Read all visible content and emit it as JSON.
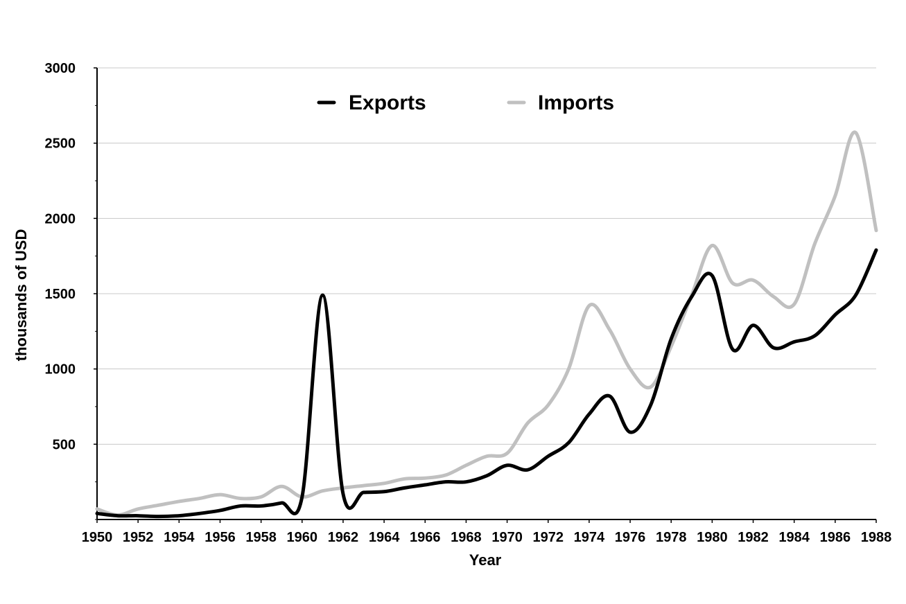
{
  "chart_data": {
    "type": "line",
    "title": "",
    "xlabel": "Year",
    "ylabel": "thousands of USD",
    "xlim": [
      1950,
      1988
    ],
    "ylim": [
      0,
      3000
    ],
    "x_ticks": [
      "1950",
      "1952",
      "1954",
      "1956",
      "1958",
      "1960",
      "1962",
      "1964",
      "1966",
      "1968",
      "1970",
      "1972",
      "1974",
      "1976",
      "1978",
      "1980",
      "1982",
      "1984",
      "1986",
      "1988"
    ],
    "y_ticks": [
      "500",
      "1000",
      "1500",
      "2000",
      "2500",
      "3000"
    ],
    "grid": "horizontal",
    "legend_position": "top",
    "x": [
      1950,
      1951,
      1952,
      1953,
      1954,
      1955,
      1956,
      1957,
      1958,
      1959,
      1960,
      1961,
      1962,
      1963,
      1964,
      1965,
      1966,
      1967,
      1968,
      1969,
      1970,
      1971,
      1972,
      1973,
      1974,
      1975,
      1976,
      1977,
      1978,
      1979,
      1980,
      1981,
      1982,
      1983,
      1984,
      1985,
      1986,
      1987,
      1988
    ],
    "series": [
      {
        "name": "Exports",
        "color": "#000000",
        "values": [
          40,
          25,
          25,
          20,
          25,
          40,
          60,
          90,
          90,
          110,
          150,
          1490,
          170,
          180,
          185,
          210,
          230,
          250,
          250,
          290,
          360,
          330,
          420,
          510,
          700,
          820,
          580,
          760,
          1200,
          1480,
          1620,
          1130,
          1290,
          1140,
          1180,
          1220,
          1360,
          1490,
          1790
        ]
      },
      {
        "name": "Imports",
        "color": "#c0c0c0",
        "values": [
          70,
          30,
          70,
          95,
          120,
          140,
          165,
          140,
          150,
          220,
          150,
          190,
          210,
          225,
          240,
          270,
          275,
          295,
          360,
          420,
          440,
          640,
          760,
          1000,
          1420,
          1260,
          1000,
          880,
          1150,
          1490,
          1820,
          1570,
          1590,
          1480,
          1430,
          1830,
          2150,
          2570,
          1920
        ]
      }
    ]
  }
}
